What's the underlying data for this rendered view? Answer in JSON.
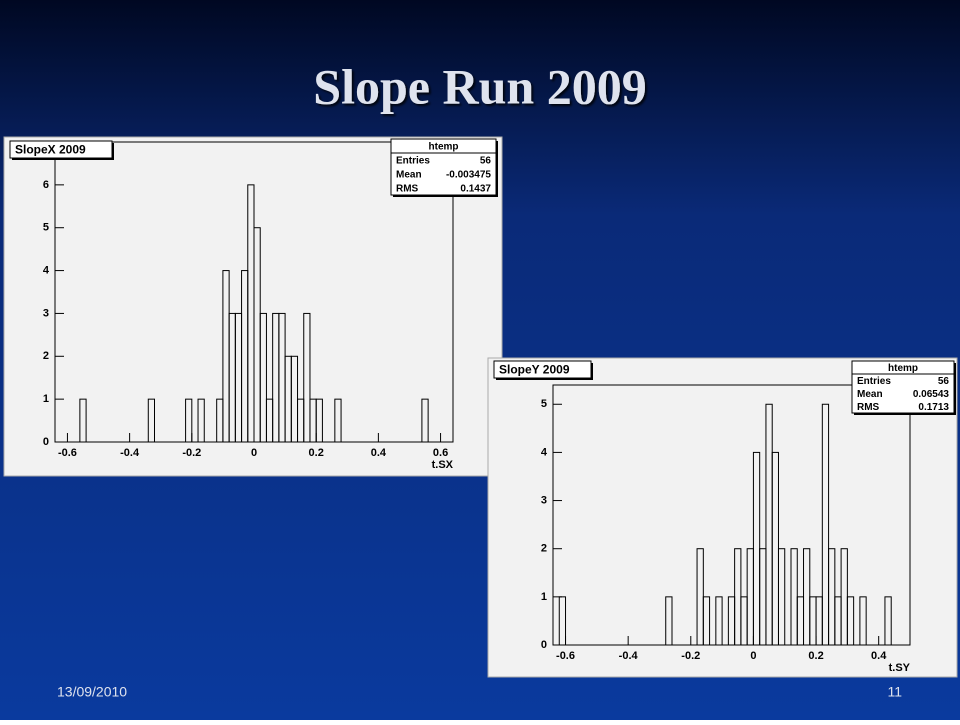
{
  "slide": {
    "title": "Slope Run 2009",
    "date": "13/09/2010",
    "page": 11
  },
  "chart_data": [
    {
      "type": "histogram",
      "title": "SlopeX 2009",
      "xlabel": "t.SX",
      "stats": {
        "title": "htemp",
        "rows": [
          [
            "Entries",
            56
          ],
          [
            "Mean",
            -0.003475
          ],
          [
            "RMS",
            0.1437
          ]
        ]
      },
      "bins": [
        -0.64,
        -0.62,
        -0.6,
        -0.58,
        -0.56,
        -0.54,
        -0.52,
        -0.5,
        -0.48,
        -0.46,
        -0.44,
        -0.42,
        -0.4,
        -0.38,
        -0.36,
        -0.34,
        -0.32,
        -0.3,
        -0.28,
        -0.26,
        -0.24,
        -0.22,
        -0.2,
        -0.18,
        -0.16,
        -0.14,
        -0.12,
        -0.1,
        -0.08,
        -0.06,
        -0.04,
        -0.02,
        0,
        0.02,
        0.04,
        0.06,
        0.08,
        0.1,
        0.12,
        0.14,
        0.16,
        0.18,
        0.2,
        0.22,
        0.24,
        0.26,
        0.28,
        0.3,
        0.32,
        0.34,
        0.36,
        0.38,
        0.4,
        0.42,
        0.44,
        0.46,
        0.48,
        0.5,
        0.52,
        0.54,
        0.56,
        0.58,
        0.6,
        0.62,
        0.64
      ],
      "values": [
        0,
        0,
        0,
        0,
        1,
        0,
        0,
        0,
        0,
        0,
        0,
        0,
        0,
        0,
        0,
        1,
        0,
        0,
        0,
        0,
        0,
        1,
        0,
        1,
        0,
        0,
        1,
        4,
        3,
        3,
        4,
        6,
        5,
        3,
        1,
        3,
        3,
        2,
        2,
        1,
        3,
        1,
        1,
        0,
        0,
        1,
        0,
        0,
        0,
        0,
        0,
        0,
        0,
        0,
        0,
        0,
        0,
        0,
        0,
        1,
        0,
        0,
        0,
        0
      ],
      "color": "#000000",
      "xlim": [
        -0.64,
        0.64
      ],
      "xticks": [
        -0.6,
        -0.4,
        -0.2,
        0,
        0.2,
        0.4,
        0.6
      ],
      "ylim": [
        0,
        7
      ],
      "yticks": [
        0,
        1,
        2,
        3,
        4,
        5,
        6
      ]
    },
    {
      "type": "histogram",
      "title": "SlopeY 2009",
      "xlabel": "t.SY",
      "stats": {
        "title": "htemp",
        "rows": [
          [
            "Entries",
            56
          ],
          [
            "Mean",
            0.06543
          ],
          [
            "RMS",
            0.1713
          ]
        ]
      },
      "bins": [
        -0.64,
        -0.62,
        -0.6,
        -0.58,
        -0.56,
        -0.54,
        -0.52,
        -0.5,
        -0.48,
        -0.46,
        -0.44,
        -0.42,
        -0.4,
        -0.38,
        -0.36,
        -0.34,
        -0.32,
        -0.3,
        -0.28,
        -0.26,
        -0.24,
        -0.22,
        -0.2,
        -0.18,
        -0.16,
        -0.14,
        -0.12,
        -0.1,
        -0.08,
        -0.06,
        -0.04,
        -0.02,
        0,
        0.02,
        0.04,
        0.06,
        0.08,
        0.1,
        0.12,
        0.14,
        0.16,
        0.18,
        0.2,
        0.22,
        0.24,
        0.26,
        0.28,
        0.3,
        0.32,
        0.34,
        0.36,
        0.38,
        0.4,
        0.42,
        0.44,
        0.46,
        0.48,
        0.5
      ],
      "values": [
        0,
        1,
        0,
        0,
        0,
        0,
        0,
        0,
        0,
        0,
        0,
        0,
        0,
        0,
        0,
        0,
        0,
        0,
        1,
        0,
        0,
        0,
        0,
        2,
        1,
        0,
        1,
        0,
        1,
        2,
        1,
        2,
        4,
        2,
        5,
        4,
        2,
        0,
        2,
        1,
        2,
        1,
        1,
        5,
        2,
        1,
        2,
        1,
        0,
        1,
        0,
        0,
        0,
        1,
        0,
        0,
        0
      ],
      "color": "#000000",
      "xlim": [
        -0.64,
        0.5
      ],
      "xticks": [
        -0.6,
        -0.4,
        -0.2,
        0,
        0.2,
        0.4
      ],
      "ylim": [
        0,
        5.4
      ],
      "yticks": [
        0,
        1,
        2,
        3,
        4,
        5
      ]
    }
  ]
}
